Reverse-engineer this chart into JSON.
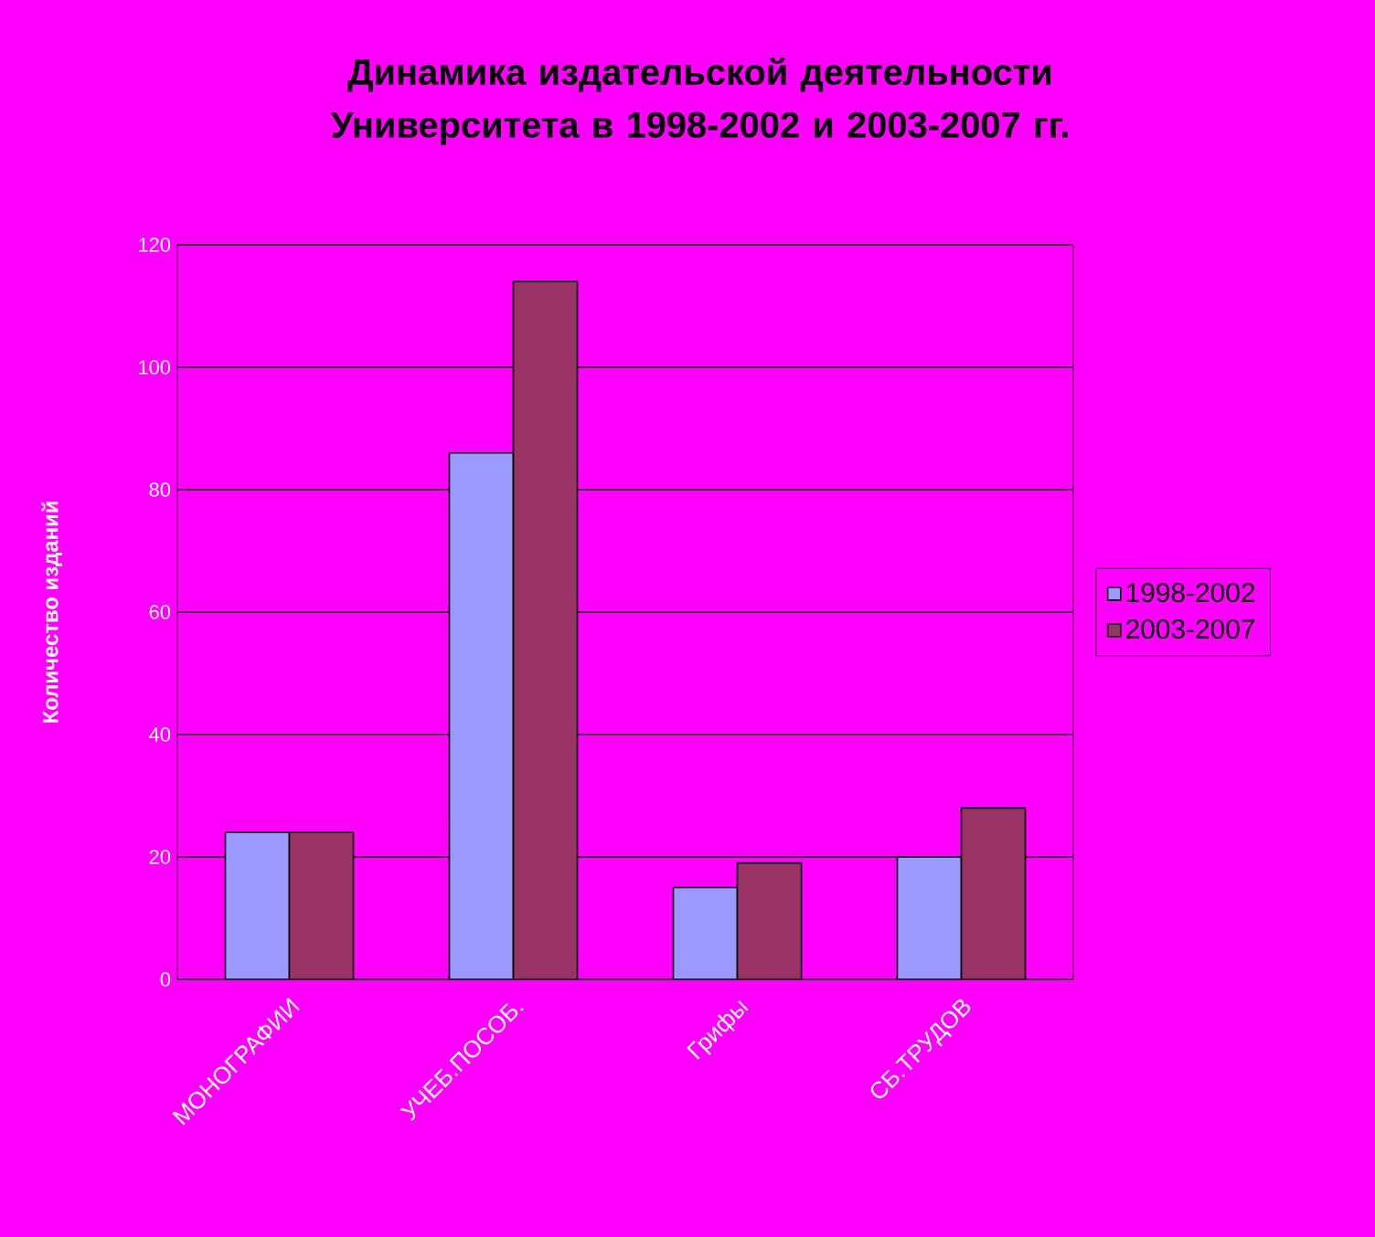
{
  "chart_data": {
    "type": "bar",
    "title": "Динамика издательской деятельности Университета в 1998-2002 и 2003-2007 гг.",
    "ylabel": "Количество изданий",
    "categories": [
      "МОНОГРАФИИ",
      "УЧЕБ.ПОСОБ.",
      "Грифы",
      "СБ.ТРУДОВ"
    ],
    "series": [
      {
        "name": "1998-2002",
        "color": "#9999ff",
        "values": [
          24,
          86,
          15,
          20
        ]
      },
      {
        "name": "2003-2007",
        "color": "#993366",
        "values": [
          24,
          114,
          19,
          28
        ]
      }
    ],
    "ylim": [
      0,
      120
    ],
    "yticks": [
      0,
      20,
      40,
      60,
      80,
      100,
      120
    ],
    "grid": "y",
    "legend": "right"
  }
}
